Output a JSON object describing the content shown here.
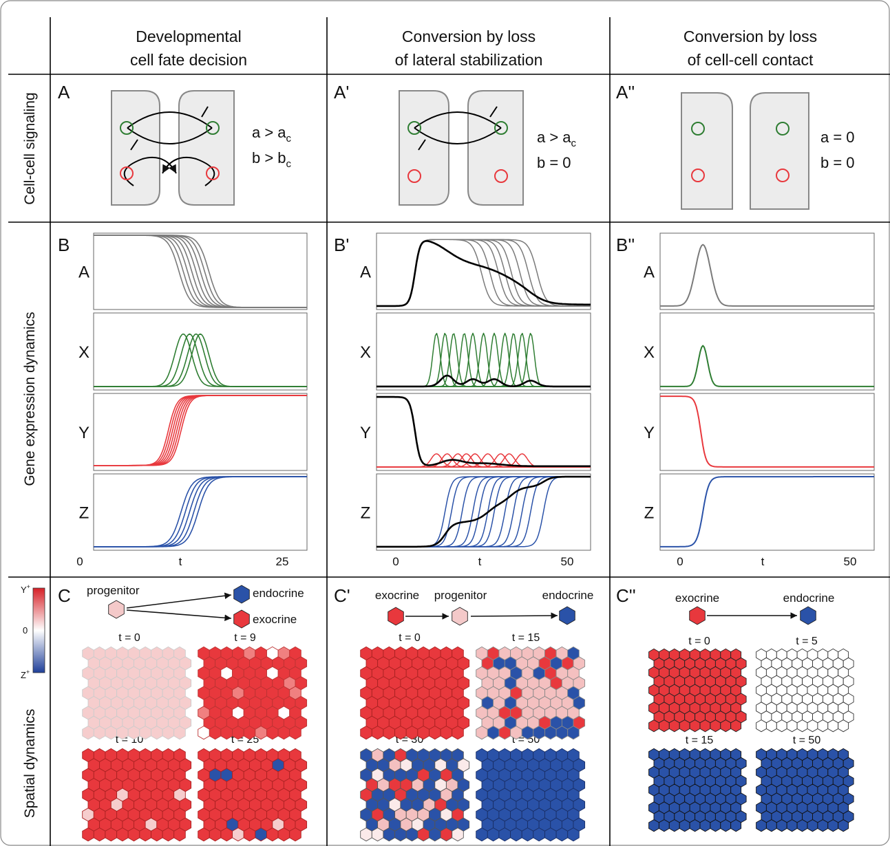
{
  "columns": [
    {
      "title_line1": "Developmental",
      "title_line2": "cell fate decision"
    },
    {
      "title_line1": "Conversion by loss",
      "title_line2": "of lateral stabilization"
    },
    {
      "title_line1": "Conversion by loss",
      "title_line2": "of cell-cell contact"
    }
  ],
  "rows": {
    "signaling": "Cell-cell signaling",
    "gene": "Gene expression dynamics",
    "spatial": "Spatial dynamics"
  },
  "panels_a": [
    {
      "label": "A",
      "cond1": "a > a",
      "cond1_sub": "c",
      "cond2": "b > b",
      "cond2_sub": "c"
    },
    {
      "label": "A'",
      "cond1": "a > a",
      "cond1_sub": "c",
      "cond2": "b = 0",
      "cond2_sub": ""
    },
    {
      "label": "A''",
      "cond1": "a = 0",
      "cond1_sub": "",
      "cond2": "b = 0",
      "cond2_sub": ""
    }
  ],
  "panels_b": [
    {
      "label": "B",
      "tick_left": "0",
      "tick_mid": "t",
      "tick_right": "25"
    },
    {
      "label": "B'",
      "tick_left": "0",
      "tick_mid": "t",
      "tick_right": "50"
    },
    {
      "label": "B''",
      "tick_left": "0",
      "tick_mid": "t",
      "tick_right": "50"
    }
  ],
  "gene_labels": [
    "A",
    "X",
    "Y",
    "Z"
  ],
  "panels_c": [
    {
      "label": "C",
      "node1": "progenitor",
      "node2": "endocrine",
      "node3": "exocrine",
      "times": [
        "t = 0",
        "t = 9",
        "t = 10",
        "t = 25"
      ]
    },
    {
      "label": "C'",
      "node1": "exocrine",
      "node2": "progenitor",
      "node3": "endocrine",
      "times": [
        "t = 0",
        "t = 15",
        "t = 30",
        "t = 50"
      ]
    },
    {
      "label": "C''",
      "node1": "exocrine",
      "node2": "endocrine",
      "times": [
        "t = 0",
        "t = 5",
        "t = 15",
        "t = 50"
      ]
    }
  ],
  "colorbar": {
    "top": "Y",
    "top_sup": "+",
    "mid": "0",
    "bottom": "Z",
    "bottom_sup": "+"
  },
  "colors": {
    "grey": "#7a7a7a",
    "green": "#2e7d32",
    "red": "#e8383d",
    "blue": "#2a52a8",
    "pink": "#f4c9c9",
    "black": "#000000",
    "cell_fill": "#ececec"
  }
}
